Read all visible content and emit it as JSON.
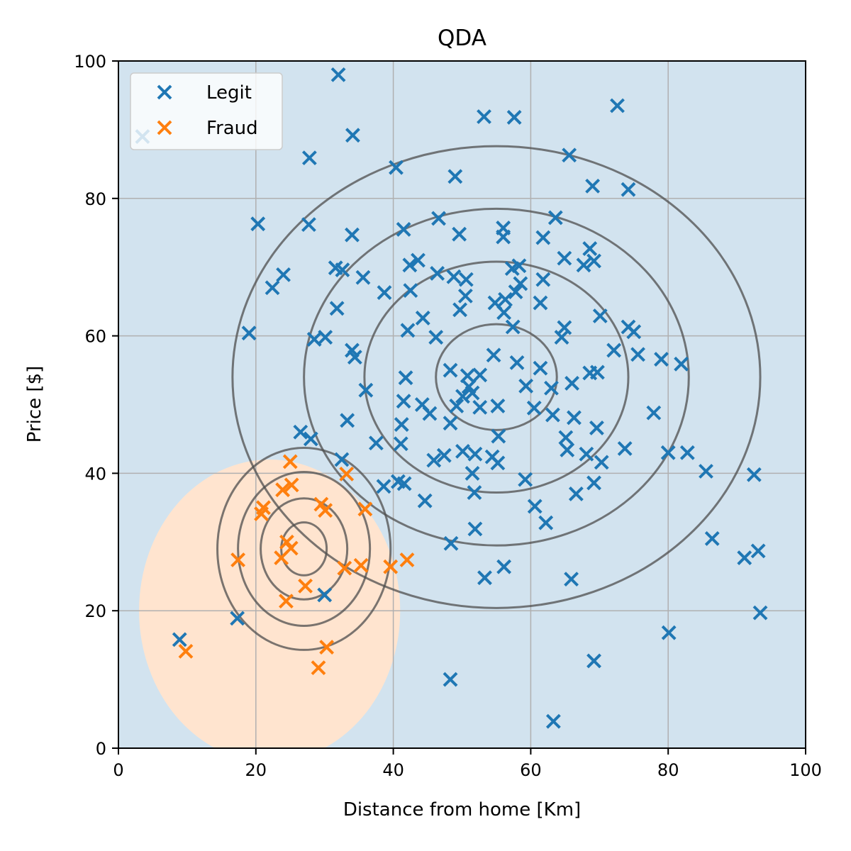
{
  "chart_data": {
    "type": "scatter",
    "title": "QDA",
    "xlabel": "Distance from home [Km]",
    "ylabel": "Price [$]",
    "xlim": [
      0,
      100
    ],
    "ylim": [
      0,
      100
    ],
    "xticks": [
      "0",
      "20",
      "40",
      "60",
      "80",
      "100"
    ],
    "yticks": [
      "0",
      "20",
      "40",
      "60",
      "80",
      "100"
    ],
    "grid": true,
    "legend": {
      "placement": "top-left",
      "entries": [
        "Legit",
        "Fraud"
      ]
    },
    "colors": {
      "legit": "#1f77b4",
      "fraud": "#ff7f0e",
      "legit_region": "#d2e3ef",
      "fraud_region": "#ffe4cf",
      "contour": "#4d4d4d"
    },
    "decision_region": {
      "fraud_boundary_center": [
        22,
        20
      ],
      "fraud_boundary_radius_x": 19,
      "fraud_boundary_radius_y": 22
    },
    "contours": {
      "legit": {
        "center": [
          55,
          54
        ],
        "sigma_x": 16,
        "sigma_y": 14,
        "levels_sigma": [
          0.55,
          1.2,
          1.75,
          2.4
        ]
      },
      "fraud": {
        "center": [
          27,
          29
        ],
        "sigma_x": 6,
        "sigma_y": 7,
        "levels_sigma": [
          0.55,
          1.05,
          1.6,
          2.1
        ]
      }
    },
    "series": [
      {
        "name": "Legit",
        "marker": "x",
        "points": [
          [
            3.5,
            89
          ],
          [
            32,
            98
          ],
          [
            53.2,
            91.9
          ],
          [
            57.6,
            91.8
          ],
          [
            72.6,
            93.5
          ],
          [
            27.8,
            85.9
          ],
          [
            34.1,
            89.2
          ],
          [
            40.4,
            84.5
          ],
          [
            49,
            83.2
          ],
          [
            65.6,
            86.3
          ],
          [
            69,
            81.8
          ],
          [
            74.2,
            81.3
          ],
          [
            20.3,
            76.3
          ],
          [
            27.7,
            76.2
          ],
          [
            34,
            74.7
          ],
          [
            41.5,
            75.5
          ],
          [
            46.6,
            77.1
          ],
          [
            49.6,
            74.8
          ],
          [
            56,
            75.7
          ],
          [
            56,
            74.4
          ],
          [
            61.8,
            74.3
          ],
          [
            63.6,
            77.2
          ],
          [
            24,
            68.9
          ],
          [
            22.4,
            67
          ],
          [
            31.6,
            69.9
          ],
          [
            32.6,
            69.6
          ],
          [
            35.6,
            68.5
          ],
          [
            38.7,
            66.3
          ],
          [
            42.4,
            70.3
          ],
          [
            43.6,
            71
          ],
          [
            46.4,
            69.1
          ],
          [
            48.8,
            68.6
          ],
          [
            50.6,
            68.2
          ],
          [
            42.5,
            66.6
          ],
          [
            50.5,
            65.8
          ],
          [
            54.8,
            64.8
          ],
          [
            56.3,
            65.3
          ],
          [
            57.3,
            69.8
          ],
          [
            58.3,
            70.2
          ],
          [
            58.5,
            67.6
          ],
          [
            57.8,
            66.4
          ],
          [
            61.8,
            68.2
          ],
          [
            64.9,
            71.3
          ],
          [
            68.6,
            72.7
          ],
          [
            67.7,
            70.3
          ],
          [
            69.2,
            70.9
          ],
          [
            31.8,
            64
          ],
          [
            44.3,
            62.6
          ],
          [
            49.7,
            63.8
          ],
          [
            56.1,
            63.4
          ],
          [
            57.4,
            61.3
          ],
          [
            61.4,
            64.8
          ],
          [
            70.1,
            62.9
          ],
          [
            74.2,
            61.3
          ],
          [
            75,
            60.6
          ],
          [
            19,
            60.4
          ],
          [
            30.1,
            59.8
          ],
          [
            28.5,
            59.5
          ],
          [
            34,
            57.9
          ],
          [
            34.4,
            56.9
          ],
          [
            42.1,
            60.8
          ],
          [
            46.2,
            59.8
          ],
          [
            54.6,
            57.2
          ],
          [
            58,
            56.1
          ],
          [
            64.5,
            59.8
          ],
          [
            64.9,
            61.2
          ],
          [
            72.1,
            57.9
          ],
          [
            75.6,
            57.3
          ],
          [
            79,
            56.6
          ],
          [
            81.9,
            55.9
          ],
          [
            41.8,
            53.9
          ],
          [
            48.3,
            55
          ],
          [
            50.8,
            54.2
          ],
          [
            52.6,
            54.3
          ],
          [
            61.4,
            55.3
          ],
          [
            63,
            52.4
          ],
          [
            66,
            53.1
          ],
          [
            68.6,
            54.6
          ],
          [
            69.7,
            54.7
          ],
          [
            36,
            52.1
          ],
          [
            41.5,
            50.5
          ],
          [
            44.2,
            50
          ],
          [
            45.3,
            48.7
          ],
          [
            48.3,
            47.3
          ],
          [
            49.2,
            49.8
          ],
          [
            50.1,
            51.2
          ],
          [
            51,
            52.6
          ],
          [
            51.5,
            51.7
          ],
          [
            52.6,
            49.6
          ],
          [
            55.2,
            49.8
          ],
          [
            59.3,
            52.7
          ],
          [
            60.5,
            49.5
          ],
          [
            63.2,
            48.5
          ],
          [
            66.3,
            48.1
          ],
          [
            69.6,
            46.6
          ],
          [
            77.9,
            48.8
          ],
          [
            33.3,
            47.7
          ],
          [
            41.2,
            47.1
          ],
          [
            41.1,
            44.3
          ],
          [
            37.5,
            44.4
          ],
          [
            45.9,
            41.9
          ],
          [
            47.4,
            42.6
          ],
          [
            50.1,
            43.2
          ],
          [
            51.9,
            42.8
          ],
          [
            54.4,
            42.4
          ],
          [
            55.3,
            45.4
          ],
          [
            55.2,
            41.5
          ],
          [
            65.1,
            45.2
          ],
          [
            65.3,
            43.4
          ],
          [
            68.1,
            42.8
          ],
          [
            70.3,
            41.6
          ],
          [
            73.7,
            43.6
          ],
          [
            80,
            43
          ],
          [
            82.8,
            43
          ],
          [
            85.5,
            40.3
          ],
          [
            92.5,
            39.8
          ],
          [
            26.5,
            46
          ],
          [
            28,
            45
          ],
          [
            32.5,
            42
          ],
          [
            40.7,
            38.8
          ],
          [
            41.6,
            38.5
          ],
          [
            38.6,
            38.1
          ],
          [
            51.5,
            40
          ],
          [
            51.8,
            37.2
          ],
          [
            59.2,
            39.1
          ],
          [
            66.6,
            37
          ],
          [
            69.2,
            38.6
          ],
          [
            44.6,
            36
          ],
          [
            60.6,
            35.2
          ],
          [
            62.2,
            32.8
          ],
          [
            51.9,
            31.9
          ],
          [
            48.4,
            29.8
          ],
          [
            86.4,
            30.5
          ],
          [
            91.1,
            27.7
          ],
          [
            93.1,
            28.7
          ],
          [
            56.1,
            26.4
          ],
          [
            53.3,
            24.8
          ],
          [
            65.9,
            24.6
          ],
          [
            30,
            22.3
          ],
          [
            17.3,
            18.9
          ],
          [
            93.4,
            19.7
          ],
          [
            80.1,
            16.8
          ],
          [
            8.9,
            15.8
          ],
          [
            69.2,
            12.7
          ],
          [
            48.3,
            10
          ],
          [
            63.3,
            3.9
          ]
        ]
      },
      {
        "name": "Fraud",
        "marker": "x",
        "points": [
          [
            25,
            41.7
          ],
          [
            25.2,
            38.3
          ],
          [
            23.9,
            37.6
          ],
          [
            33.2,
            39.9
          ],
          [
            21.1,
            35
          ],
          [
            20.8,
            34.1
          ],
          [
            29.5,
            35.5
          ],
          [
            30.1,
            34.6
          ],
          [
            35.9,
            34.8
          ],
          [
            24.5,
            30
          ],
          [
            25.1,
            29.1
          ],
          [
            23.7,
            27.7
          ],
          [
            17.4,
            27.4
          ],
          [
            32.9,
            26.2
          ],
          [
            35.3,
            26.6
          ],
          [
            39.6,
            26.4
          ],
          [
            42,
            27.4
          ],
          [
            27.2,
            23.6
          ],
          [
            24.4,
            21.4
          ],
          [
            30.3,
            14.7
          ],
          [
            9.8,
            14.1
          ],
          [
            29.1,
            11.7
          ]
        ]
      }
    ]
  }
}
